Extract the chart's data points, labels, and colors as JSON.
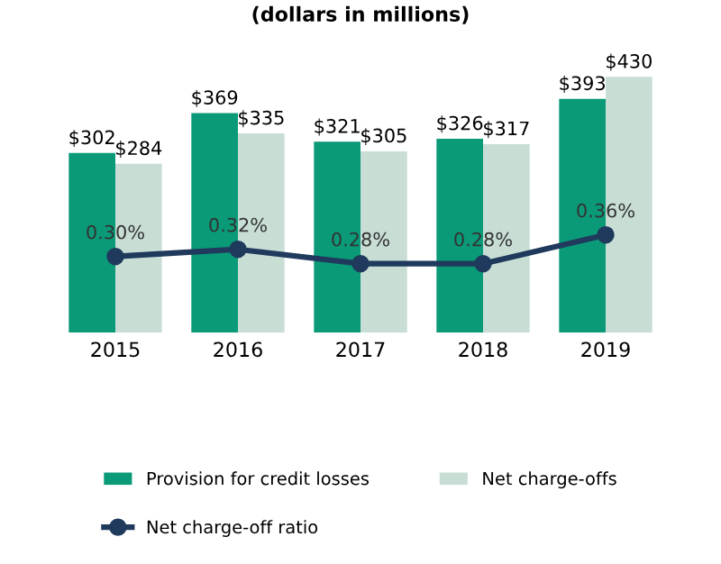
{
  "chart_data": {
    "type": "bar",
    "title": "(dollars in millions)",
    "categories": [
      "2015",
      "2016",
      "2017",
      "2018",
      "2019"
    ],
    "tick_labels": "x",
    "grid": false,
    "legend": "bottom",
    "series": [
      {
        "name": "Provision for credit losses",
        "color": "#0a9a78",
        "values": [
          302,
          369,
          321,
          326,
          393
        ],
        "value_labels": [
          "$302",
          "$369",
          "$321",
          "$326",
          "$393"
        ]
      },
      {
        "name": "Net charge-offs",
        "color": "#c8ded5",
        "values": [
          284,
          335,
          305,
          317,
          430
        ],
        "value_labels": [
          "$284",
          "$335",
          "$305",
          "$317",
          "$430"
        ]
      },
      {
        "name": "Net charge-off ratio",
        "type": "line",
        "axis": "y2",
        "marker": "circle",
        "line_style": "solid",
        "color": "#1f3a5c",
        "values": [
          0.3,
          0.32,
          0.28,
          0.28,
          0.36
        ],
        "value_labels": [
          "0.30%",
          "0.32%",
          "0.28%",
          "0.28%",
          "0.36%"
        ]
      }
    ]
  }
}
